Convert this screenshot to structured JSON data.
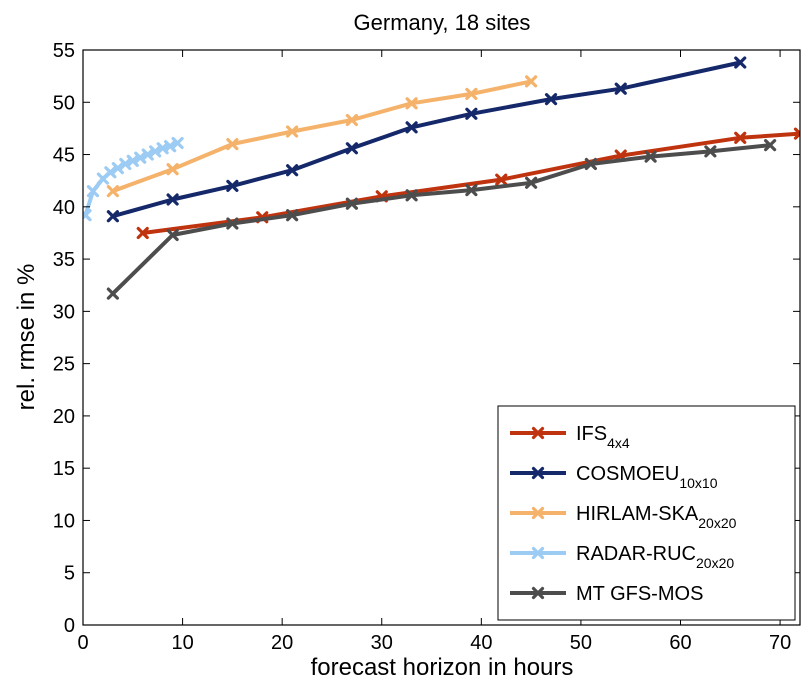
{
  "chart_data": {
    "type": "line",
    "title": "Germany, 18 sites",
    "xlabel": "forecast horizon in hours",
    "ylabel": "rel. rmse in %",
    "xlim": [
      0,
      72
    ],
    "ylim": [
      0,
      55
    ],
    "xticks": [
      0,
      10,
      20,
      30,
      40,
      50,
      60,
      70
    ],
    "yticks": [
      0,
      5,
      10,
      15,
      20,
      25,
      30,
      35,
      40,
      45,
      50,
      55
    ],
    "grid": false,
    "legend_position": "lower-right",
    "series": [
      {
        "name": "IFS",
        "subscript": "4x4",
        "color": "#c0330f",
        "x": [
          6,
          18,
          30,
          42,
          54,
          66,
          72
        ],
        "y": [
          37.5,
          39.0,
          41.0,
          42.6,
          44.9,
          46.6,
          47.0
        ]
      },
      {
        "name": "COSMOEU",
        "subscript": "10x10",
        "color": "#14286a",
        "x": [
          3,
          9,
          15,
          21,
          27,
          33,
          39,
          47,
          54,
          66
        ],
        "y": [
          39.1,
          40.7,
          42.0,
          43.5,
          45.6,
          47.6,
          48.9,
          50.3,
          51.3,
          53.8
        ]
      },
      {
        "name": "HIRLAM-SKA",
        "subscript": "20x20",
        "color": "#f5b26b",
        "x": [
          3,
          9,
          15,
          21,
          27,
          33,
          39,
          45
        ],
        "y": [
          41.5,
          43.6,
          46.0,
          47.2,
          48.3,
          49.9,
          50.8,
          52.0
        ]
      },
      {
        "name": "RADAR-RUC",
        "subscript": "20x20",
        "color": "#9ccbf3",
        "x": [
          0.25,
          1.0,
          2.0,
          2.75,
          3.5,
          4.25,
          5.0,
          5.75,
          6.5,
          7.25,
          8.0,
          8.75,
          9.5
        ],
        "y": [
          39.2,
          41.5,
          42.7,
          43.3,
          43.7,
          44.1,
          44.4,
          44.7,
          45.0,
          45.3,
          45.6,
          45.8,
          46.1
        ]
      },
      {
        "name": "MT GFS-MOS",
        "subscript": "",
        "color": "#4d4d4d",
        "x": [
          3,
          9,
          15,
          21,
          27,
          33,
          39,
          45,
          51,
          57,
          63,
          69
        ],
        "y": [
          31.7,
          37.3,
          38.4,
          39.2,
          40.3,
          41.1,
          41.6,
          42.3,
          44.1,
          44.8,
          45.3,
          45.9
        ]
      }
    ]
  }
}
